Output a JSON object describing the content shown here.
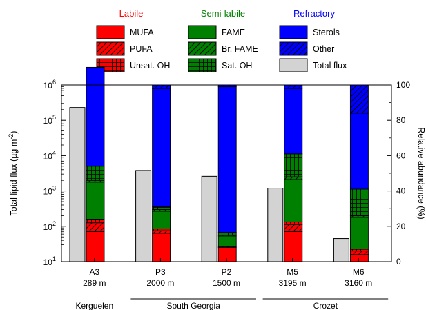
{
  "chart_data": {
    "type": "bar",
    "legend_placement": "top",
    "grid": false,
    "legend_groups": [
      {
        "name": "Labile",
        "color": "#ff0000",
        "items": [
          "MUFA",
          "PUFA",
          "Unsat. OH"
        ]
      },
      {
        "name": "Semi-labile",
        "color": "#008000",
        "items": [
          "FAME",
          "Br. FAME",
          "Sat. OH"
        ]
      },
      {
        "name": "Refractory",
        "color": "#0000ff",
        "items": [
          "Sterols",
          "Other",
          "Total flux"
        ]
      }
    ],
    "left_axis": {
      "label_main": "Total lipid flux (µg m",
      "label_sup": "-2",
      "label_end": ")",
      "scale": "log",
      "range": [
        10,
        1000000
      ],
      "ticks": [
        {
          "value": 10,
          "base": "10",
          "exp": "1"
        },
        {
          "value": 100,
          "base": "10",
          "exp": "2"
        },
        {
          "value": 1000,
          "base": "10",
          "exp": "3"
        },
        {
          "value": 10000,
          "base": "10",
          "exp": "4"
        },
        {
          "value": 100000,
          "base": "10",
          "exp": "5"
        },
        {
          "value": 1000000,
          "base": "10",
          "exp": "6"
        }
      ]
    },
    "right_axis": {
      "label": "Relative abundance (%)",
      "range": [
        0,
        100
      ],
      "ticks": [
        "0",
        "20",
        "40",
        "60",
        "80",
        "100"
      ]
    },
    "components": [
      {
        "name": "MUFA",
        "color": "#ff0000",
        "pattern": "solid"
      },
      {
        "name": "PUFA",
        "color": "#ff0000",
        "pattern": "hatch"
      },
      {
        "name": "Unsat. OH",
        "color": "#ff0000",
        "pattern": "grid"
      },
      {
        "name": "FAME",
        "color": "#008000",
        "pattern": "solid"
      },
      {
        "name": "Br. FAME",
        "color": "#008000",
        "pattern": "hatch"
      },
      {
        "name": "Sat. OH",
        "color": "#008000",
        "pattern": "grid"
      },
      {
        "name": "Sterols",
        "color": "#0000ff",
        "pattern": "solid"
      },
      {
        "name": "Other",
        "color": "#0000ff",
        "pattern": "hatch"
      }
    ],
    "total_flux_color": "#d3d3d3",
    "categories": [
      {
        "site": "A3",
        "depth": "289 m",
        "region": "Kerguelen",
        "total_flux": 230000,
        "relative_abundance": [
          17,
          5,
          2,
          21,
          1,
          8,
          56,
          0
        ]
      },
      {
        "site": "P3",
        "depth": "2000 m",
        "region": "South Georgia",
        "total_flux": 3800,
        "relative_abundance": [
          16,
          1.5,
          1,
          10,
          1,
          1.5,
          67,
          2
        ]
      },
      {
        "site": "P2",
        "depth": "1500 m",
        "region": "South Georgia",
        "total_flux": 2600,
        "relative_abundance": [
          8,
          0.5,
          0,
          6,
          0.5,
          1.5,
          82.5,
          1
        ]
      },
      {
        "site": "M5",
        "depth": "3195 m",
        "region": "Crozet",
        "total_flux": 1200,
        "relative_abundance": [
          17,
          4,
          1.5,
          24,
          1.5,
          13,
          37,
          2
        ]
      },
      {
        "site": "M6",
        "depth": "3160 m",
        "region": "Crozet",
        "total_flux": 45,
        "relative_abundance": [
          4,
          2,
          1,
          18,
          1,
          15,
          43,
          16
        ]
      }
    ],
    "regions": [
      {
        "name": "Kerguelen",
        "categories": [
          "A3"
        ]
      },
      {
        "name": "South Georgia",
        "categories": [
          "P3",
          "P2"
        ]
      },
      {
        "name": "Crozet",
        "categories": [
          "M5",
          "M6"
        ]
      }
    ]
  }
}
